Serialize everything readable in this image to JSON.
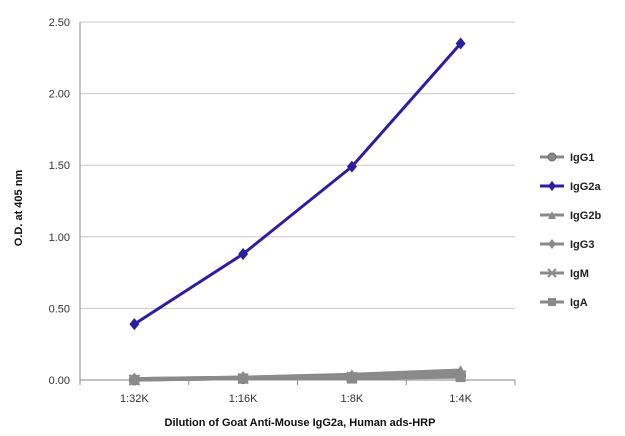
{
  "chart_data": {
    "type": "line",
    "title": "",
    "xlabel": "Dilution of Goat Anti-Mouse IgG2a, Human ads-HRP",
    "ylabel": "O.D. at 405 nm",
    "categories": [
      "1:32K",
      "1:16K",
      "1:8K",
      "1:4K"
    ],
    "ylim": [
      0,
      2.5
    ],
    "yticks": [
      "0.00",
      "0.50",
      "1.00",
      "1.50",
      "2.00",
      "2.50"
    ],
    "grid": "horizontal",
    "legend_position": "right",
    "series": [
      {
        "name": "IgG1",
        "values": [
          0.0,
          0.01,
          0.02,
          0.03
        ],
        "color": "#8a8a8a",
        "marker": "circle"
      },
      {
        "name": "IgG2a",
        "values": [
          0.39,
          0.88,
          1.49,
          2.35
        ],
        "color": "#2b1fa0",
        "marker": "diamond"
      },
      {
        "name": "IgG2b",
        "values": [
          0.01,
          0.02,
          0.04,
          0.07
        ],
        "color": "#8a8a8a",
        "marker": "triangle"
      },
      {
        "name": "IgG3",
        "values": [
          0.01,
          0.02,
          0.03,
          0.05
        ],
        "color": "#8a8a8a",
        "marker": "diamond"
      },
      {
        "name": "IgM",
        "values": [
          0.0,
          0.01,
          0.02,
          0.03
        ],
        "color": "#8a8a8a",
        "marker": "x"
      },
      {
        "name": "IgA",
        "values": [
          0.0,
          0.01,
          0.01,
          0.02
        ],
        "color": "#8a8a8a",
        "marker": "square"
      }
    ]
  }
}
